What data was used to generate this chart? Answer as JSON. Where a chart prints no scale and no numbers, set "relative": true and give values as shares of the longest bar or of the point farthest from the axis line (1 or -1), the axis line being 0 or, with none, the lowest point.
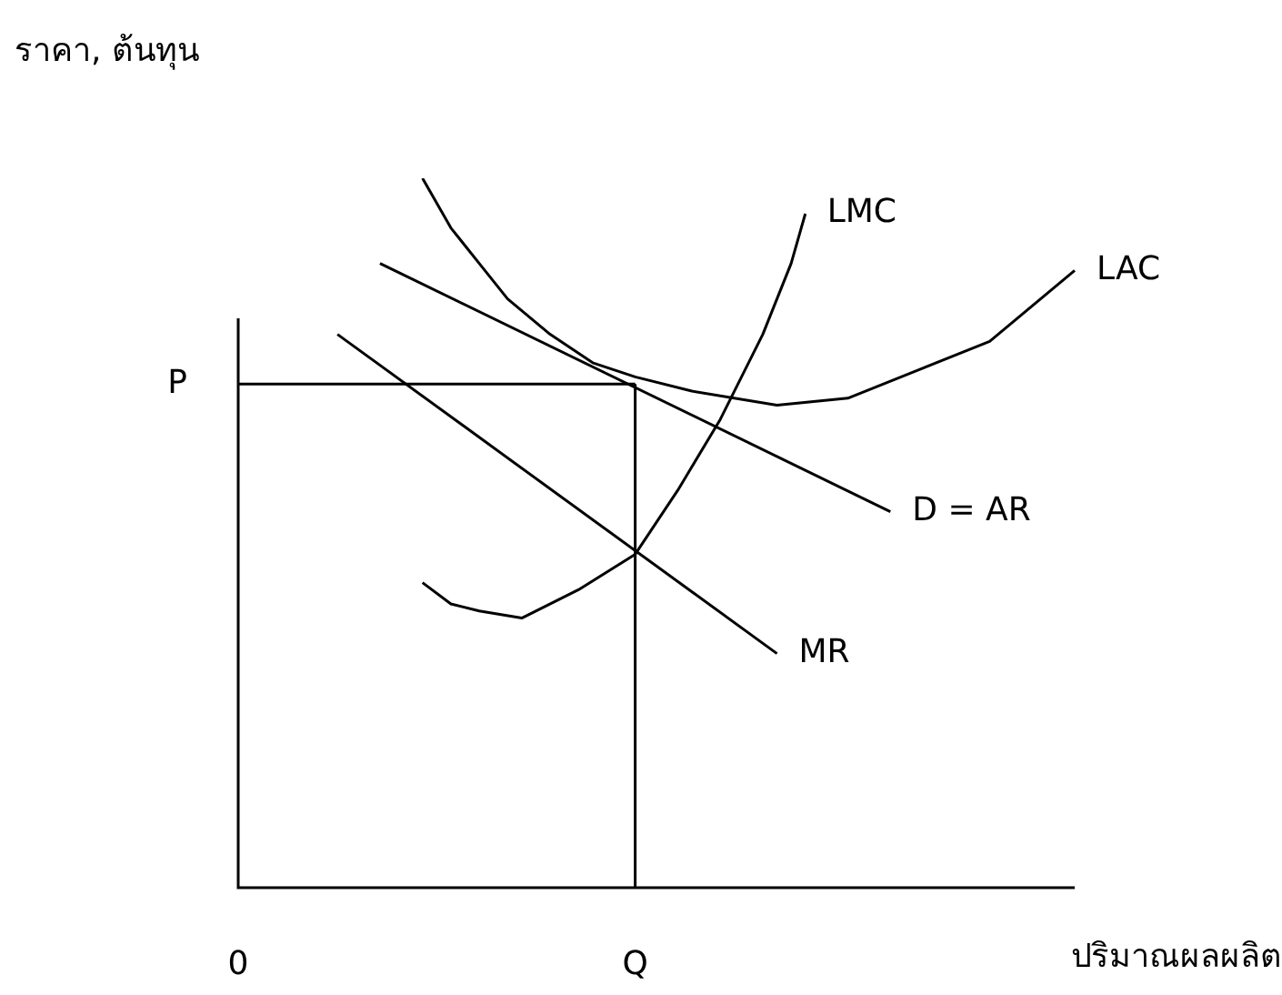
{
  "chart_data": {
    "type": "line",
    "relative": true,
    "xlabel": "ปริมาณผลผลิต",
    "ylabel": "ราคา, ต้นทุน",
    "tick_labels": "x",
    "legend": false,
    "marker": "none",
    "line_style": "solid",
    "categories": [
      "0",
      null,
      null,
      null,
      null,
      null,
      null,
      null,
      null,
      null,
      null,
      null,
      null,
      null,
      null,
      null,
      null,
      null,
      null,
      null,
      null,
      null,
      null,
      null,
      null,
      null,
      null,
      null,
      "Q",
      null,
      null,
      null,
      null,
      null,
      null,
      null,
      null,
      null,
      null,
      null,
      null,
      null,
      null,
      null,
      null,
      null,
      null,
      null,
      null,
      null,
      null,
      null,
      null,
      null,
      null,
      null,
      null,
      null,
      null,
      null
    ],
    "ref_lines": [
      {
        "axis": "y",
        "value": 0.71,
        "label": "P"
      },
      {
        "axis": "x",
        "value": "Q"
      }
    ],
    "series": [
      {
        "name": "LMC",
        "color": "#000000",
        "values": [
          null,
          null,
          null,
          null,
          null,
          null,
          null,
          null,
          null,
          null,
          null,
          null,
          null,
          0.43,
          null,
          0.4,
          null,
          0.39,
          null,
          null,
          0.38,
          null,
          null,
          null,
          0.42,
          null,
          null,
          null,
          0.47,
          null,
          null,
          0.56,
          null,
          null,
          0.66,
          null,
          null,
          0.78,
          null,
          0.88,
          0.95,
          null,
          null,
          null,
          null,
          null,
          null,
          null,
          null,
          null,
          null,
          null,
          null,
          null,
          null,
          null,
          null,
          null,
          null,
          null
        ]
      },
      {
        "name": "LAC",
        "color": "#000000",
        "values": [
          null,
          null,
          null,
          null,
          null,
          null,
          null,
          null,
          null,
          null,
          null,
          null,
          null,
          1.0,
          null,
          0.93,
          null,
          0.88,
          null,
          0.83,
          null,
          null,
          0.78,
          null,
          null,
          0.74,
          null,
          null,
          0.72,
          null,
          null,
          null,
          0.7,
          null,
          null,
          null,
          null,
          null,
          0.68,
          null,
          null,
          null,
          null,
          0.69,
          null,
          null,
          null,
          null,
          0.73,
          null,
          null,
          null,
          null,
          0.77,
          null,
          null,
          0.82,
          null,
          null,
          0.87
        ]
      },
      {
        "name": "D = AR",
        "color": "#000000",
        "values": [
          null,
          null,
          null,
          null,
          null,
          null,
          null,
          null,
          null,
          null,
          0.88,
          null,
          null,
          null,
          null,
          null,
          null,
          null,
          null,
          null,
          null,
          null,
          null,
          null,
          null,
          null,
          null,
          null,
          null,
          null,
          null,
          null,
          null,
          null,
          null,
          null,
          null,
          null,
          null,
          null,
          null,
          null,
          null,
          null,
          null,
          null,
          0.53,
          null,
          null,
          null,
          null,
          null,
          null,
          null,
          null,
          null,
          null,
          null,
          null,
          null
        ]
      },
      {
        "name": "MR",
        "color": "#000000",
        "values": [
          null,
          null,
          null,
          null,
          null,
          null,
          null,
          0.78,
          null,
          null,
          null,
          null,
          null,
          null,
          null,
          null,
          null,
          null,
          null,
          null,
          null,
          null,
          null,
          null,
          null,
          null,
          null,
          null,
          null,
          null,
          null,
          null,
          null,
          null,
          null,
          null,
          null,
          null,
          0.33,
          null,
          null,
          null,
          null,
          null,
          null,
          null,
          null,
          null,
          null,
          null,
          null,
          null,
          null,
          null,
          null,
          null,
          null,
          null,
          null,
          null
        ]
      }
    ]
  }
}
